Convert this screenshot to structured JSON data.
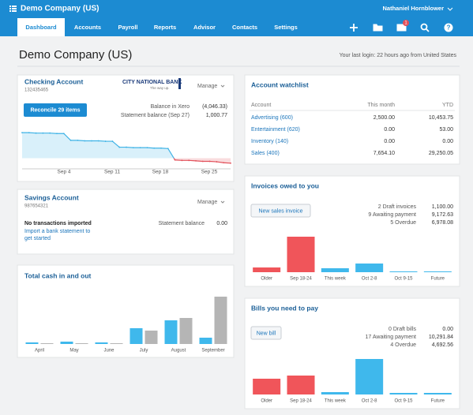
{
  "top_bar": {
    "org_name": "Demo Company (US)",
    "user_name": "Nathaniel Hornblower"
  },
  "nav": {
    "tabs": [
      "Dashboard",
      "Accounts",
      "Payroll",
      "Reports",
      "Advisor",
      "Contacts",
      "Settings"
    ],
    "mail_badge": "1"
  },
  "header": {
    "title": "Demo Company (US)",
    "last_login": "Your last login: 22 hours ago from United States"
  },
  "checking": {
    "title": "Checking Account",
    "account_number": "132435465",
    "bank_logo": "CITY NATIONAL BANK",
    "bank_tagline": "The way up.",
    "manage": "Manage",
    "reconcile_button": "Reconcile 29 items",
    "balance_label": "Balance in Xero",
    "balance_value": "(4,046.33)",
    "statement_label": "Statement balance (Sep 27)",
    "statement_value": "1,000.77",
    "chart": {
      "type": "line",
      "x_labels": [
        "Sep 4",
        "Sep 11",
        "Sep 18",
        "Sep 25"
      ],
      "ylim": [
        -2,
        7
      ],
      "positive_color": "#3fb3e6",
      "negative_color": "#e2505a",
      "values": [
        5.6,
        5.6,
        5.5,
        5.5,
        5.5,
        5.4,
        5.4,
        3.9,
        3.9,
        3.8,
        3.8,
        3.8,
        3.7,
        3.7,
        2.4,
        2.4,
        2.3,
        2.3,
        2.3,
        2.2,
        2.2,
        2.1,
        -0.4,
        -0.5,
        -0.5,
        -0.6,
        -0.7,
        -0.7,
        -0.8,
        -1.0,
        -1.1
      ]
    }
  },
  "savings": {
    "title": "Savings Account",
    "account_number": "987654321",
    "manage": "Manage",
    "status": "No transactions imported",
    "import_link_line1": "Import a bank statement to",
    "import_link_line2": "get started",
    "statement_label": "Statement balance",
    "statement_value": "0.00"
  },
  "cash": {
    "title": "Total cash in and out",
    "chart": {
      "type": "bar",
      "categories": [
        "April",
        "May",
        "June",
        "July",
        "August",
        "September"
      ],
      "ylim": [
        0,
        60
      ],
      "series": [
        {
          "color": "#3fb8ec",
          "values": [
            2,
            3,
            2,
            20,
            30,
            8
          ]
        },
        {
          "color": "#b5b5b5",
          "values": [
            1,
            0,
            1,
            17,
            33,
            60
          ]
        }
      ]
    }
  },
  "watchlist": {
    "title": "Account watchlist",
    "columns": [
      "Account",
      "This month",
      "YTD"
    ],
    "rows": [
      [
        "Advertising (600)",
        "2,500.00",
        "10,453.75"
      ],
      [
        "Entertainment (620)",
        "0.00",
        "53.00"
      ],
      [
        "Inventory (140)",
        "0.00",
        "0.00"
      ],
      [
        "Sales (400)",
        "7,654.10",
        "29,250.05"
      ]
    ]
  },
  "invoices": {
    "title": "Invoices owed to you",
    "button": "New sales invoice",
    "summary": [
      [
        "2 Draft invoices",
        "1,100.00"
      ],
      [
        "9 Awaiting payment",
        "9,172.63"
      ],
      [
        "5 Overdue",
        "6,978.08"
      ]
    ],
    "chart": {
      "type": "bar",
      "categories": [
        "Older",
        "Sep 18-24",
        "This week",
        "Oct 2-8",
        "Oct 9-15",
        "Future"
      ],
      "ylim": [
        0,
        50
      ],
      "colors": [
        "#f0555a",
        "#f0555a",
        "#3fb8ec",
        "#3fb8ec",
        "#3fb8ec",
        "#3fb8ec"
      ],
      "values": [
        6,
        45,
        5,
        11,
        0.5,
        0.5
      ]
    }
  },
  "bills": {
    "title": "Bills you need to pay",
    "button": "New bill",
    "summary": [
      [
        "0 Draft bills",
        "0.00"
      ],
      [
        "17 Awaiting payment",
        "10,291.84"
      ],
      [
        "4 Overdue",
        "4,692.56"
      ]
    ],
    "chart": {
      "type": "bar",
      "categories": [
        "Older",
        "Sep 18-24",
        "This week",
        "Oct 2-8",
        "Oct 9-15",
        "Future"
      ],
      "ylim": [
        0,
        50
      ],
      "colors": [
        "#f0555a",
        "#f0555a",
        "#3fb8ec",
        "#3fb8ec",
        "#3fb8ec",
        "#3fb8ec"
      ],
      "values": [
        20,
        24,
        3,
        45,
        2,
        2
      ]
    }
  }
}
